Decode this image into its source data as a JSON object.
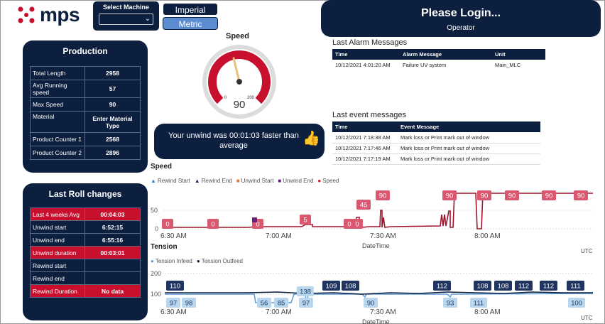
{
  "logo": {
    "text": "mps",
    "icon": "mps-logo-icon"
  },
  "machine_select": {
    "label": "Select Machine",
    "value": ""
  },
  "units": {
    "imperial": "Imperial",
    "metric": "Metric",
    "selected": "Metric"
  },
  "login": {
    "title": "Please Login...",
    "role": "Operator"
  },
  "production": {
    "title": "Production",
    "rows": [
      {
        "label": "Total Length",
        "value": "2958"
      },
      {
        "label": "Avg Running speed",
        "value": "57"
      },
      {
        "label": "Max Speed",
        "value": "90"
      },
      {
        "label": "Material",
        "value": "Enter Material Type"
      },
      {
        "label": "Product Counter 1",
        "value": "2568"
      },
      {
        "label": "Product Counter 2",
        "value": "2896"
      }
    ]
  },
  "roll": {
    "title": "Last Roll changes",
    "rows": [
      {
        "label": "Last 4 weeks Avg",
        "value": "00:04:03",
        "highlight": true
      },
      {
        "label": "Unwind start",
        "value": "6:52:15",
        "highlight": false
      },
      {
        "label": "Unwind end",
        "value": "6:55:16",
        "highlight": false
      },
      {
        "label": "Unwind duration",
        "value": "00:03:01",
        "highlight": true
      },
      {
        "label": "Rewind start",
        "value": "",
        "highlight": false
      },
      {
        "label": "Rewind end",
        "value": "",
        "highlight": false
      },
      {
        "label": "Rewind Duration",
        "value": "No data",
        "highlight": true
      }
    ]
  },
  "speed_gauge": {
    "title": "Speed",
    "value": "90",
    "min": "0",
    "max": "200",
    "fraction": 0.45,
    "accent": "#c8102e"
  },
  "unwind_message": {
    "text": "Your unwind was 00:01:03 faster than average",
    "icon": "thumbs-up-icon"
  },
  "alarms": {
    "title": "Last Alarm Messages",
    "columns": [
      "Time",
      "Alarm Message",
      "Unit"
    ],
    "rows": [
      [
        "10/12/2021 4:01:20 AM",
        "Failure UV system",
        "Main_MLC"
      ]
    ]
  },
  "events": {
    "title": "Last event messages",
    "columns": [
      "Time",
      "Event Message"
    ],
    "rows": [
      [
        "10/12/2021 7:18:38 AM",
        "Mark loss or Print mark out of window"
      ],
      [
        "10/12/2021 7:17:46 AM",
        "Mark loss or Print mark out of window"
      ],
      [
        "10/12/2021 7:17:19 AM",
        "Mark loss or Print mark out of window"
      ]
    ]
  },
  "speed_chart": {
    "title": "Speed",
    "legend": [
      "Rewind Start",
      "Rewind End",
      "Unwind Start",
      "Unwind End",
      "Speed"
    ],
    "yticks": [
      "50",
      "0"
    ],
    "xticks": [
      "6:30 AM",
      "7:00 AM",
      "7:30 AM",
      "8:00 AM"
    ],
    "xlabel": "DateTime",
    "tz": "UTC",
    "labels": [
      "0",
      "0",
      "0",
      "0",
      "5",
      "0",
      "45",
      "0",
      "90",
      "90",
      "90",
      "90",
      "90",
      "90"
    ]
  },
  "tension_chart": {
    "title": "Tension",
    "legend": [
      "Tension Infeed",
      "Tension Outfeed"
    ],
    "yticks": [
      "200",
      "100"
    ],
    "xticks": [
      "6:30 AM",
      "7:00 AM",
      "7:30 AM",
      "8:00 AM"
    ],
    "xlabel": "DateTime",
    "tz": "UTC",
    "outfeed_labels": [
      "110",
      "109",
      "108",
      "112",
      "108",
      "108",
      "112",
      "112",
      "111"
    ],
    "infeed_labels": [
      "97",
      "98",
      "56",
      "85",
      "97",
      "138",
      "90",
      "93",
      "111",
      "100"
    ]
  },
  "colors": {
    "navy": "#0c1f3f",
    "red": "#c8102e",
    "blue": "#5b8ccf",
    "pink": "#d9576f"
  }
}
